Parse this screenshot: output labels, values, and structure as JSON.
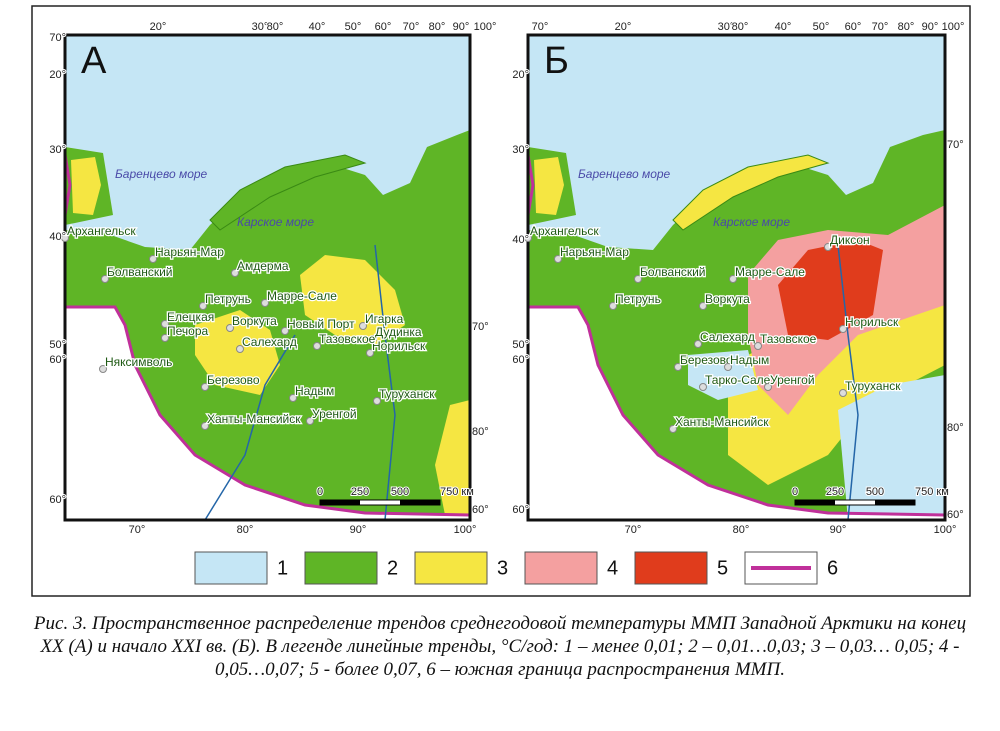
{
  "panels": [
    {
      "label": "А",
      "seas": [
        "Баренцево море",
        "Карское море"
      ],
      "cities": [
        "Архангельск",
        "Нарьян-Мар",
        "Болванский",
        "Амдерма",
        "Петрунь",
        "Марре-Сале",
        "Елецкая",
        "Печора",
        "Воркута",
        "Новый Порт",
        "Игарка",
        "Дудинка",
        "Норильск",
        "Салехард",
        "Тазовское",
        "Няксимволь",
        "Березово",
        "Надым",
        "Уренгой",
        "Туруханск",
        "Ханты-Мансийск"
      ],
      "top_labels": [
        "20°",
        "30°",
        "80°",
        "40°",
        "50°",
        "60°",
        "70°",
        "80°",
        "90°",
        "100°"
      ],
      "left_labels": [
        "70°",
        "20°",
        "30°",
        "40°",
        "50°",
        "60°",
        "60°"
      ],
      "right_labels": [
        "80°",
        "70°",
        "60°"
      ],
      "bottom_labels": [
        "70°",
        "80°",
        "90°",
        "100°"
      ],
      "scale": [
        "0",
        "250",
        "500",
        "750 км"
      ]
    },
    {
      "label": "Б",
      "seas": [
        "Баренцево море",
        "Карское море"
      ],
      "cities": [
        "Архангельск",
        "Нарьян-Мар",
        "Болванский",
        "Марре-Сале",
        "Диксон",
        "Петрунь",
        "Воркута",
        "Норильск",
        "Салехард",
        "Тазовское",
        "Березово",
        "Надым",
        "Тарко-Сале",
        "Уренгой",
        "Туруханск",
        "Ханты-Мансийск"
      ],
      "top_labels": [
        "70°",
        "20°",
        "30°",
        "80°",
        "40°",
        "50°",
        "60°",
        "70°",
        "80°",
        "90°",
        "100°"
      ],
      "left_labels": [
        "20°",
        "30°",
        "40°",
        "50°",
        "60°",
        "60°"
      ],
      "right_labels": [
        "80°",
        "70°",
        "60°"
      ],
      "bottom_labels": [
        "70°",
        "80°",
        "90°",
        "100°"
      ],
      "scale": [
        "0",
        "250",
        "500",
        "750 км"
      ]
    }
  ],
  "legend": [
    "1",
    "2",
    "3",
    "4",
    "5",
    "6"
  ],
  "caption": "Рис. 3. Пространственное распределение трендов среднегодовой температуры ММП Западной Арктики на конец XX (А) и начало XXI вв. (Б). В легенде линейные тренды, °С/год: 1 – менее 0,01; 2 – 0,01…0,03; 3 – 0,03… 0,05; 4 - 0,05…0,07; 5 - более 0,07, 6 – южная граница распространения ММП."
}
